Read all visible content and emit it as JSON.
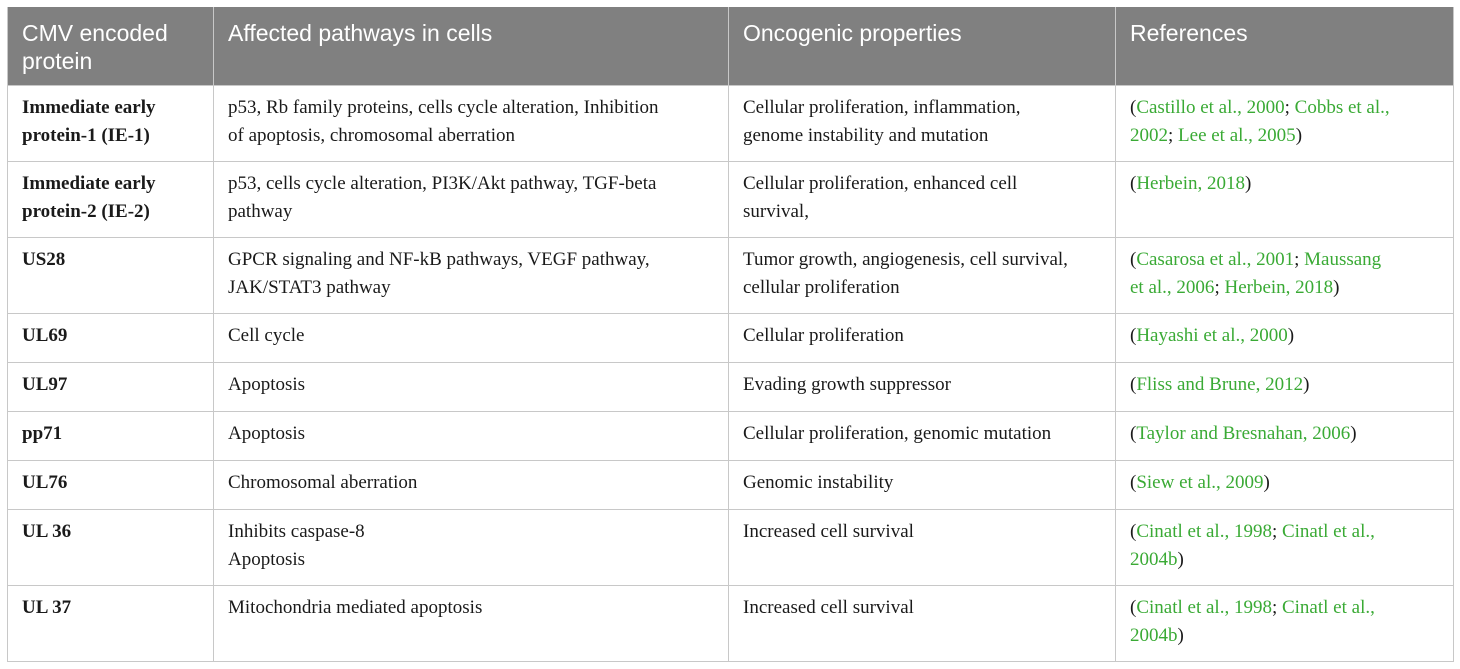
{
  "table": {
    "headers": {
      "protein": "CMV encoded protein",
      "pathways": "Affected pathways in cells",
      "oncogenic": "Oncogenic properties",
      "references": "References"
    },
    "rows": [
      {
        "protein_lines": [
          "Immediate early",
          "protein-1 (IE-1)"
        ],
        "pathway_lines": [
          "p53, Rb family proteins, cells cycle alteration, Inhibition",
          "of apoptosis, chromosomal aberration"
        ],
        "oncogenic_lines": [
          "Cellular proliferation, inflammation,",
          "genome instability and mutation"
        ],
        "ref_lines": [
          [
            {
              "t": "(",
              "link": false
            },
            {
              "t": "Castillo et al., 2000",
              "link": true
            },
            {
              "t": "; ",
              "link": false
            },
            {
              "t": "Cobbs et al.,",
              "link": true
            }
          ],
          [
            {
              "t": "2002",
              "link": true
            },
            {
              "t": "; ",
              "link": false
            },
            {
              "t": "Lee et al., 2005",
              "link": true
            },
            {
              "t": ")",
              "link": false
            }
          ]
        ]
      },
      {
        "protein_lines": [
          "Immediate early",
          "protein-2 (IE-2)"
        ],
        "pathway_lines": [
          "p53, cells cycle alteration, PI3K/Akt pathway, TGF-beta",
          "pathway"
        ],
        "oncogenic_lines": [
          "Cellular proliferation, enhanced cell",
          "survival,"
        ],
        "ref_lines": [
          [
            {
              "t": "(",
              "link": false
            },
            {
              "t": "Herbein, 2018",
              "link": true
            },
            {
              "t": ")",
              "link": false
            }
          ]
        ]
      },
      {
        "protein_lines": [
          "US28"
        ],
        "pathway_lines": [
          "GPCR signaling and NF-kB pathways, VEGF pathway,",
          "JAK/STAT3 pathway"
        ],
        "oncogenic_lines": [
          "Tumor growth, angiogenesis, cell survival,",
          "cellular proliferation"
        ],
        "ref_lines": [
          [
            {
              "t": "(",
              "link": false
            },
            {
              "t": "Casarosa et al., 2001",
              "link": true
            },
            {
              "t": "; ",
              "link": false
            },
            {
              "t": "Maussang",
              "link": true
            }
          ],
          [
            {
              "t": "et al., 2006",
              "link": true
            },
            {
              "t": "; ",
              "link": false
            },
            {
              "t": "Herbein, 2018",
              "link": true
            },
            {
              "t": ")",
              "link": false
            }
          ]
        ]
      },
      {
        "protein_lines": [
          "UL69"
        ],
        "pathway_lines": [
          "Cell cycle"
        ],
        "oncogenic_lines": [
          "Cellular proliferation"
        ],
        "ref_lines": [
          [
            {
              "t": "(",
              "link": false
            },
            {
              "t": "Hayashi et al., 2000",
              "link": true
            },
            {
              "t": ")",
              "link": false
            }
          ]
        ]
      },
      {
        "protein_lines": [
          "UL97"
        ],
        "pathway_lines": [
          "Apoptosis"
        ],
        "oncogenic_lines": [
          "Evading growth suppressor"
        ],
        "ref_lines": [
          [
            {
              "t": "(",
              "link": false
            },
            {
              "t": "Fliss and Brune, 2012",
              "link": true
            },
            {
              "t": ")",
              "link": false
            }
          ]
        ]
      },
      {
        "protein_lines": [
          "pp71"
        ],
        "pathway_lines": [
          "Apoptosis"
        ],
        "oncogenic_lines": [
          "Cellular proliferation, genomic mutation"
        ],
        "ref_lines": [
          [
            {
              "t": "(",
              "link": false
            },
            {
              "t": "Taylor and Bresnahan, 2006",
              "link": true
            },
            {
              "t": ")",
              "link": false
            }
          ]
        ]
      },
      {
        "protein_lines": [
          "UL76"
        ],
        "pathway_lines": [
          "Chromosomal aberration"
        ],
        "oncogenic_lines": [
          "Genomic instability"
        ],
        "ref_lines": [
          [
            {
              "t": "(",
              "link": false
            },
            {
              "t": "Siew et al., 2009",
              "link": true
            },
            {
              "t": ")",
              "link": false
            }
          ]
        ]
      },
      {
        "protein_lines": [
          "UL 36"
        ],
        "pathway_lines": [
          "Inhibits caspase-8",
          "Apoptosis"
        ],
        "oncogenic_lines": [
          "Increased cell survival"
        ],
        "ref_lines": [
          [
            {
              "t": "(",
              "link": false
            },
            {
              "t": "Cinatl et al., 1998",
              "link": true
            },
            {
              "t": "; ",
              "link": false
            },
            {
              "t": "Cinatl et al.,",
              "link": true
            }
          ],
          [
            {
              "t": "2004b",
              "link": true
            },
            {
              "t": ")",
              "link": false
            }
          ]
        ]
      },
      {
        "protein_lines": [
          "UL 37"
        ],
        "pathway_lines": [
          "Mitochondria mediated apoptosis"
        ],
        "oncogenic_lines": [
          "Increased cell survival"
        ],
        "ref_lines": [
          [
            {
              "t": "(",
              "link": false
            },
            {
              "t": "Cinatl et al., 1998",
              "link": true
            },
            {
              "t": "; ",
              "link": false
            },
            {
              "t": "Cinatl et al.,",
              "link": true
            }
          ],
          [
            {
              "t": "2004b",
              "link": true
            },
            {
              "t": ")",
              "link": false
            }
          ]
        ]
      }
    ],
    "colors": {
      "header_bg": "#808080",
      "header_text": "#ffffff",
      "border": "#c8c8c8",
      "link": "#3aaa35",
      "body_text": "#1a1a1a"
    }
  }
}
